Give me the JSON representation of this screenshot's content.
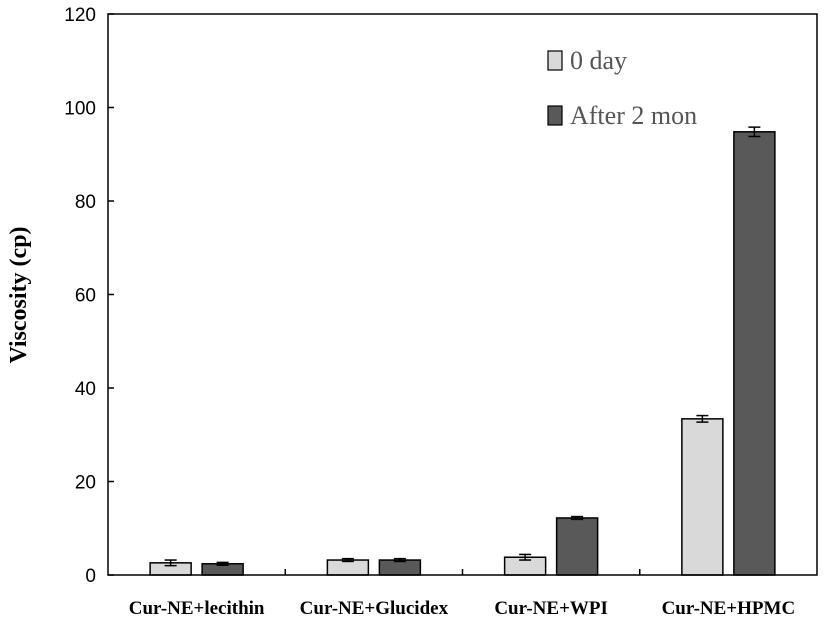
{
  "chart_data": {
    "type": "bar",
    "categories": [
      "Cur-NE+lecithin",
      "Cur-NE+Glucidex",
      "Cur-NE+WPI",
      "Cur-NE+HPMC"
    ],
    "series": [
      {
        "name": "0 day",
        "values": [
          2.6,
          3.2,
          3.8,
          33.4
        ],
        "errors": [
          0.6,
          0.3,
          0.6,
          0.7
        ],
        "color": "#d9d9d9"
      },
      {
        "name": "After 2 mon",
        "values": [
          2.4,
          3.2,
          12.2,
          94.8
        ],
        "errors": [
          0.3,
          0.3,
          0.3,
          1.0
        ],
        "color": "#595959"
      }
    ],
    "title": "",
    "xlabel": "",
    "ylabel": "Viscosity (cp)",
    "ylim": [
      0,
      120
    ],
    "yticks": [
      "0",
      "20",
      "40",
      "60",
      "80",
      "100",
      "120"
    ],
    "grid": false,
    "legend_position": "top-right"
  }
}
